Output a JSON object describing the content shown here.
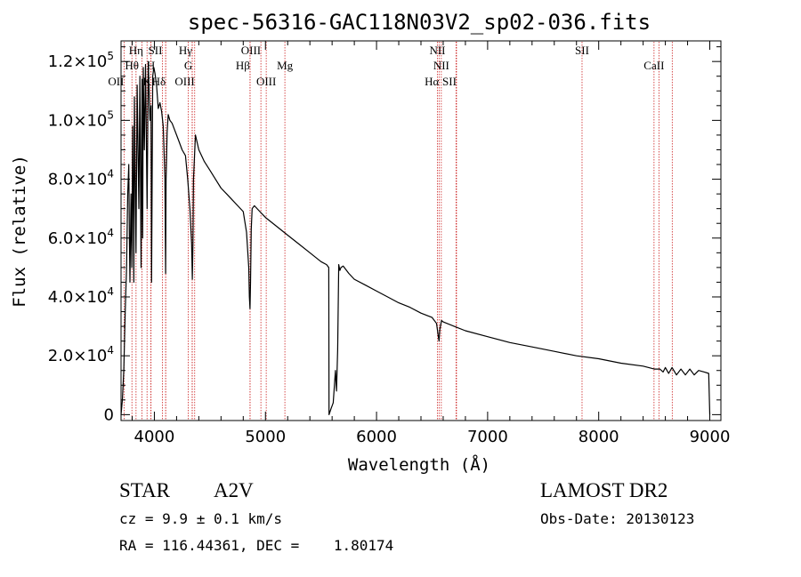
{
  "chart_data": {
    "type": "line",
    "title": "spec-56316-GAC118N03V2_sp02-036.fits",
    "xlabel": "Wavelength (Å)",
    "ylabel": "Flux (relative)",
    "xlim": [
      3700,
      9100
    ],
    "ylim": [
      -2000,
      127000
    ],
    "x_ticks": [
      4000,
      5000,
      6000,
      7000,
      8000,
      9000
    ],
    "x_tick_labels": [
      "4000",
      "5000",
      "6000",
      "7000",
      "8000",
      "9000"
    ],
    "y_ticks": [
      0,
      20000,
      40000,
      60000,
      80000,
      100000,
      120000
    ],
    "y_tick_labels": [
      {
        "mant": "0",
        "exp": ""
      },
      {
        "mant": "2.0×10",
        "exp": "4"
      },
      {
        "mant": "4.0×10",
        "exp": "4"
      },
      {
        "mant": "6.0×10",
        "exp": "4"
      },
      {
        "mant": "8.0×10",
        "exp": "4"
      },
      {
        "mant": "1.0×10",
        "exp": "5"
      },
      {
        "mant": "1.2×10",
        "exp": "5"
      }
    ],
    "grid": false,
    "line_color": "#000000",
    "marker_color": "#cc2222",
    "spectrum": {
      "x": [
        3700,
        3712,
        3725,
        3738,
        3750,
        3760,
        3770,
        3775,
        3780,
        3790,
        3797,
        3805,
        3815,
        3820,
        3835,
        3845,
        3860,
        3870,
        3880,
        3889,
        3895,
        3900,
        3910,
        3920,
        3935,
        3945,
        3960,
        3970,
        3975,
        3985,
        3995,
        4005,
        4020,
        4035,
        4050,
        4065,
        4080,
        4095,
        4101,
        4105,
        4115,
        4125,
        4140,
        4160,
        4180,
        4200,
        4220,
        4250,
        4280,
        4300,
        4320,
        4335,
        4342,
        4347,
        4352,
        4370,
        4400,
        4450,
        4500,
        4550,
        4600,
        4650,
        4700,
        4750,
        4800,
        4830,
        4850,
        4855,
        4861,
        4866,
        4872,
        4880,
        4900,
        4950,
        5000,
        5100,
        5200,
        5300,
        5400,
        5500,
        5550,
        5570,
        5572,
        5590,
        5610,
        5630,
        5640,
        5650,
        5660,
        5670,
        5680,
        5700,
        5750,
        5800,
        5900,
        6000,
        6100,
        6200,
        6300,
        6400,
        6500,
        6540,
        6555,
        6563,
        6570,
        6585,
        6600,
        6700,
        6800,
        7000,
        7200,
        7400,
        7600,
        7800,
        8000,
        8200,
        8400,
        8500,
        8550,
        8580,
        8600,
        8630,
        8660,
        8700,
        8740,
        8780,
        8820,
        8860,
        8900,
        8950,
        8990,
        9000
      ],
      "y": [
        0,
        5000,
        15000,
        35000,
        50000,
        75000,
        85000,
        60000,
        45000,
        75000,
        50000,
        98000,
        45000,
        108000,
        55000,
        112000,
        70000,
        115000,
        50000,
        114000,
        60000,
        118000,
        90000,
        119000,
        70000,
        120000,
        100000,
        105000,
        45000,
        115000,
        118000,
        116000,
        112000,
        104000,
        106000,
        103000,
        98000,
        80000,
        48000,
        80000,
        96000,
        102000,
        100000,
        99000,
        97000,
        95000,
        93000,
        90000,
        88000,
        80000,
        70000,
        58000,
        46000,
        58000,
        80000,
        95000,
        90000,
        86000,
        83000,
        80000,
        77000,
        75000,
        73000,
        71000,
        69000,
        62000,
        50000,
        40000,
        36000,
        45000,
        63000,
        70000,
        71000,
        69000,
        67000,
        64000,
        61000,
        58000,
        55000,
        52000,
        51000,
        50000,
        0,
        2000,
        4000,
        15000,
        8000,
        22000,
        51000,
        49000,
        50000,
        50500,
        48000,
        46000,
        44000,
        42000,
        40000,
        38000,
        36500,
        34500,
        33000,
        31000,
        27000,
        25000,
        29000,
        32000,
        31500,
        30000,
        28500,
        26500,
        24500,
        23000,
        21500,
        20000,
        19000,
        17500,
        16500,
        15500,
        15500,
        14500,
        16000,
        14000,
        16000,
        13500,
        15500,
        13500,
        15500,
        13500,
        15000,
        14500,
        14000,
        0
      ]
    },
    "lines": [
      {
        "label": "OII",
        "wave": 3727,
        "row": 3,
        "align": "end"
      },
      {
        "label": "Hθ",
        "wave": 3798,
        "row": 2,
        "align": "middle"
      },
      {
        "label": "Hη",
        "wave": 3835,
        "row": 1,
        "align": "middle"
      },
      {
        "label": "K",
        "wave": 3934,
        "row": 3,
        "align": "middle"
      },
      {
        "label": "H",
        "wave": 3969,
        "row": 2,
        "align": "middle"
      },
      {
        "label": "SII",
        "wave": 4072,
        "row": 1,
        "align": "end"
      },
      {
        "label": "Hδ",
        "wave": 4102,
        "row": 3,
        "align": "end"
      },
      {
        "label": "Hγ",
        "wave": 4341,
        "row": 1,
        "align": "end"
      },
      {
        "label": "G",
        "wave": 4305,
        "row": 2,
        "align": "middle"
      },
      {
        "label": "OIII",
        "wave": 4363,
        "row": 3,
        "align": "end"
      },
      {
        "label": "OIII",
        "wave": 4959,
        "row": 1,
        "align": "end"
      },
      {
        "label": "Hβ",
        "wave": 4861,
        "row": 2,
        "align": "end"
      },
      {
        "label": "OIII",
        "wave": 5007,
        "row": 3,
        "align": "middle"
      },
      {
        "label": "Mg",
        "wave": 5175,
        "row": 2,
        "align": "middle"
      },
      {
        "label": "NII",
        "wave": 6548,
        "row": 1,
        "align": "middle"
      },
      {
        "label": "NII",
        "wave": 6583,
        "row": 2,
        "align": "middle"
      },
      {
        "label": "Hα",
        "wave": 6563,
        "row": 3,
        "align": "end"
      },
      {
        "label": "SII",
        "wave": 6720,
        "row": 3,
        "align": "end"
      },
      {
        "label": "SII",
        "wave": 7850,
        "row": 1,
        "align": "middle"
      },
      {
        "label": "CaII",
        "wave": 8498,
        "row": 2,
        "align": "middle"
      }
    ],
    "extra_marker_waves": [
      3889,
      3970,
      4102,
      4340,
      4861,
      6716,
      8542,
      8662
    ]
  },
  "info": {
    "class_label": "STAR",
    "subclass": "A2V",
    "redshift": "cz = 9.9 ± 0.1 km/s",
    "coords": "RA = 116.44361, DEC =    1.80174",
    "survey": "LAMOST DR2",
    "obs_date": "Obs-Date: 20130123"
  }
}
